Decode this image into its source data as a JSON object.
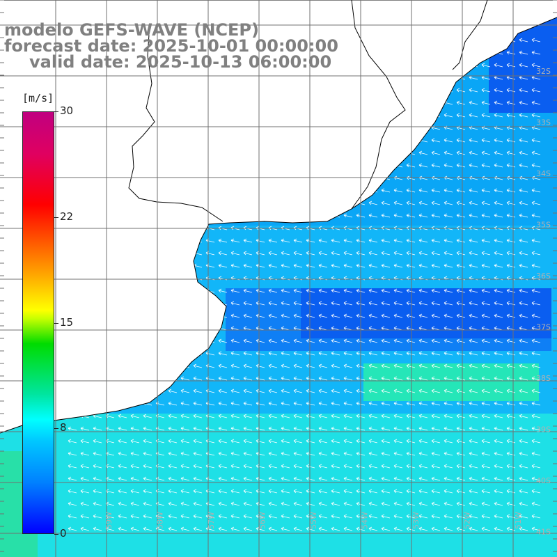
{
  "title": {
    "line1": "modelo GEFS-WAVE (NCEP)",
    "line2": "forecast date: 2025-10-01 00:00:00",
    "line3": "valid date: 2025-10-13 06:00:00"
  },
  "colorbar": {
    "units": "[m/s]",
    "min": 0,
    "max": 30,
    "ticks": [
      {
        "label": "30",
        "value": 30
      },
      {
        "label": "22",
        "value": 22.5
      },
      {
        "label": "15",
        "value": 15
      },
      {
        "label": "8",
        "value": 7.5
      },
      {
        "label": "0",
        "value": 0
      }
    ],
    "colors": [
      "#0000ff",
      "#0080ff",
      "#00c8ff",
      "#00ffff",
      "#00dc00",
      "#ffff00",
      "#ff5000",
      "#ff0000",
      "#c00080"
    ]
  },
  "map": {
    "lat_labels": [
      "32S",
      "33S",
      "34S",
      "35S",
      "36S",
      "37S",
      "38S",
      "39S",
      "40S",
      "41S"
    ],
    "lon_labels": [
      "59W",
      "58W",
      "57W",
      "56W",
      "55W",
      "54W",
      "53W",
      "52W",
      "51W"
    ],
    "land_color": "#ffffff",
    "coast_color": "#000000",
    "grid_color": "#707070",
    "wind_arrow_color": "#ffffff",
    "wind_direction": "from east to west"
  }
}
